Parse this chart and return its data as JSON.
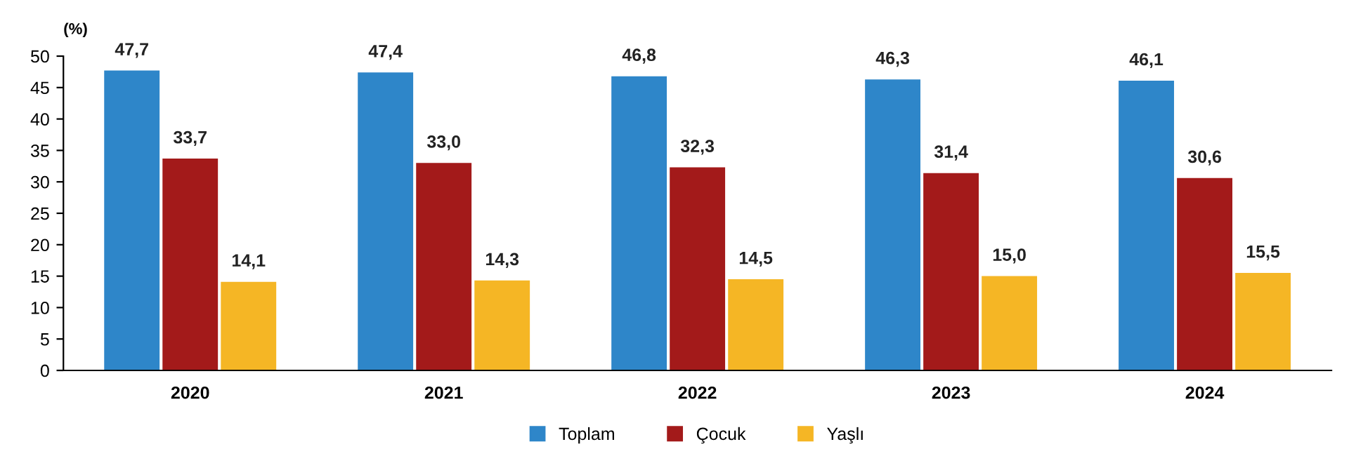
{
  "chart_data": {
    "type": "bar",
    "ylabel": "(%)",
    "categories": [
      "2020",
      "2021",
      "2022",
      "2023",
      "2024"
    ],
    "series": [
      {
        "name": "Toplam",
        "color": "#2e86c9",
        "values": [
          47.7,
          47.4,
          46.8,
          46.3,
          46.1
        ]
      },
      {
        "name": "Çocuk",
        "color": "#a31a1a",
        "values": [
          33.7,
          33.0,
          32.3,
          31.4,
          30.6
        ]
      },
      {
        "name": "Yaşlı",
        "color": "#f5b625",
        "values": [
          14.1,
          14.3,
          14.5,
          15.0,
          15.5
        ]
      }
    ],
    "value_labels": [
      [
        "47,7",
        "47,4",
        "46,8",
        "46,3",
        "46,1"
      ],
      [
        "33,7",
        "33,0",
        "32,3",
        "31,4",
        "30,6"
      ],
      [
        "14,1",
        "14,3",
        "14,5",
        "15,0",
        "15,5"
      ]
    ],
    "ylim": [
      0,
      50
    ],
    "yticks": [
      0,
      5,
      10,
      15,
      20,
      25,
      30,
      35,
      40,
      45,
      50
    ],
    "grid": false,
    "legend": "bottom"
  }
}
